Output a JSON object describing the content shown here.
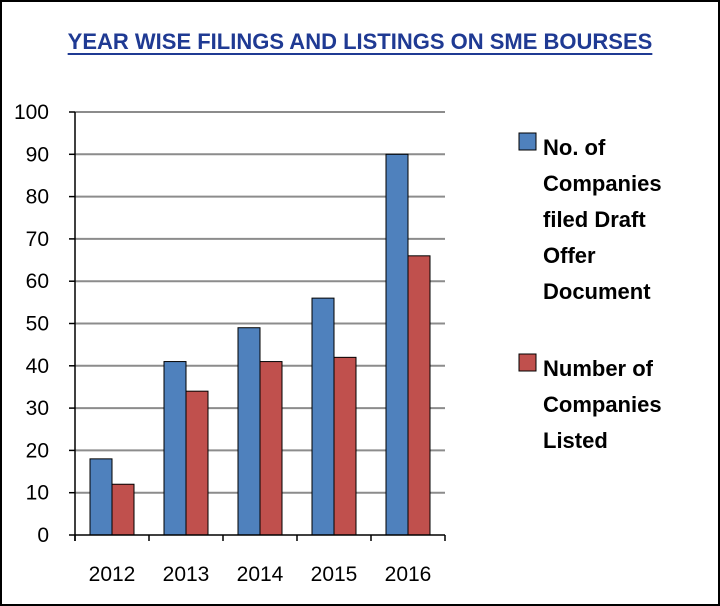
{
  "chart_data": {
    "type": "bar",
    "title": "YEAR WISE FILINGS AND LISTINGS ON SME BOURSES",
    "categories": [
      "2012",
      "2013",
      "2014",
      "2015",
      "2016"
    ],
    "series": [
      {
        "name": "No. of Companies filed Draft Offer Document",
        "values": [
          18,
          41,
          49,
          56,
          90
        ],
        "color": "#4F81BD"
      },
      {
        "name": "Number of Companies Listed",
        "values": [
          12,
          34,
          41,
          42,
          66
        ],
        "color": "#C0504D"
      }
    ],
    "ylim": [
      0,
      100
    ],
    "yticks": [
      0,
      10,
      20,
      30,
      40,
      50,
      60,
      70,
      80,
      90,
      100
    ],
    "grid": true,
    "legend_position": "right",
    "title_color": "#1F3A93"
  },
  "legend": {
    "series1_lines": [
      "No. of",
      "Companies",
      "filed Draft",
      "Offer",
      "Document"
    ],
    "series2_lines": [
      "Number of",
      "Companies",
      "Listed"
    ]
  }
}
